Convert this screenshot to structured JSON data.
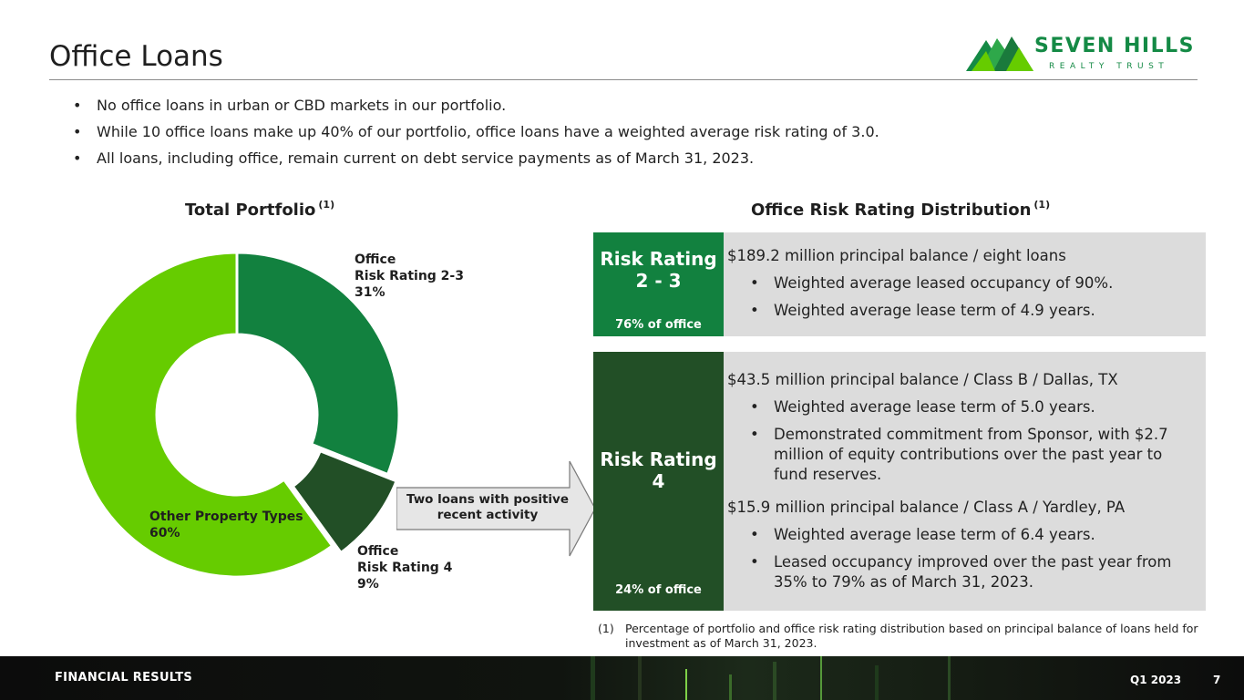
{
  "page": {
    "title": "Office Loans",
    "bullets": [
      "No office loans in urban or CBD markets in our portfolio.",
      "While 10 office loans make up 40% of our portfolio, office loans have a weighted average risk rating of 3.0.",
      "All loans, including office, remain current on debt service payments as of March 31, 2023."
    ]
  },
  "logo": {
    "name": "SEVEN HILLS",
    "sub": "REALTY TRUST",
    "color": "#148a45"
  },
  "portfolio": {
    "heading": "Total Portfolio",
    "note_mark": "(1)"
  },
  "chart_data": {
    "type": "pie",
    "variant": "donut",
    "categories": [
      "Office Risk Rating 2-3",
      "Office Risk Rating 4",
      "Other Property Types"
    ],
    "values": [
      31,
      9,
      60
    ],
    "unit": "%",
    "colors": [
      "#12813f",
      "#224f26",
      "#66cc00"
    ],
    "start_angle": "12 o'clock, clockwise",
    "labels": [
      {
        "line1": "Office",
        "line2": "Risk Rating 2-3",
        "value": "31%"
      },
      {
        "line1": "Office",
        "line2": "Risk Rating 4",
        "value": "9%"
      },
      {
        "line1": "Other Property Types",
        "value": "60%"
      }
    ],
    "exploded": [
      "Office Risk Rating 4"
    ]
  },
  "callout": {
    "text": "Two loans with positive recent activity"
  },
  "distribution": {
    "heading": "Office Risk Rating Distribution",
    "note_mark": "(1)",
    "rating_23": {
      "title_line1": "Risk Rating",
      "title_line2": "2 - 3",
      "share": "76% of office",
      "color": "#12813f",
      "line": "$189.2 million principal balance / eight loans",
      "points": [
        "Weighted average leased occupancy of 90%.",
        "Weighted average lease term of 4.9 years."
      ]
    },
    "rating_4": {
      "title_line1": "Risk Rating",
      "title_line2": "4",
      "share": "24% of office",
      "color": "#224f26",
      "loan1": {
        "line": "$43.5 million principal balance / Class B / Dallas, TX",
        "points": [
          "Weighted average lease term of 5.0 years.",
          "Demonstrated commitment from Sponsor, with $2.7 million of equity contributions over the past year to fund reserves."
        ]
      },
      "loan2": {
        "line": "$15.9 million principal balance / Class A / Yardley, PA",
        "points": [
          "Weighted average lease term of 6.4 years.",
          "Leased occupancy improved over the past year from 35% to 79% as of March 31, 2023."
        ]
      }
    }
  },
  "footnote": {
    "num": "(1)",
    "text": "Percentage of portfolio and office risk rating distribution based on principal balance of loans held for investment as of March 31, 2023."
  },
  "footer": {
    "section": "FINANCIAL RESULTS",
    "period": "Q1 2023",
    "page": "7"
  }
}
